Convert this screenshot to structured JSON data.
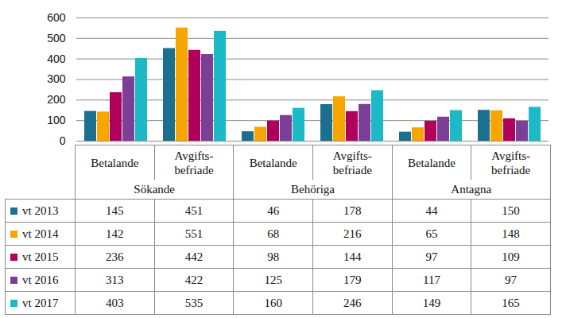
{
  "chart_data": {
    "type": "bar",
    "categories": [
      "Betalande",
      "Avgifts-befriade",
      "Betalande",
      "Avgifts-befriade",
      "Betalande",
      "Avgifts-befriade"
    ],
    "category_groups": [
      "Sökande",
      "Sökande",
      "Behöriga",
      "Behöriga",
      "Antagna",
      "Antagna"
    ],
    "series": [
      {
        "name": "vt 2013",
        "color": "#1b6f8f",
        "values": [
          145,
          451,
          46,
          178,
          44,
          150
        ]
      },
      {
        "name": "vt 2014",
        "color": "#f7a600",
        "values": [
          142,
          551,
          68,
          216,
          65,
          148
        ]
      },
      {
        "name": "vt 2015",
        "color": "#b0005b",
        "values": [
          236,
          442,
          98,
          144,
          97,
          109
        ]
      },
      {
        "name": "vt 2016",
        "color": "#7b3f98",
        "values": [
          313,
          422,
          125,
          179,
          117,
          97
        ]
      },
      {
        "name": "vt 2017",
        "color": "#1cb9c6",
        "values": [
          403,
          535,
          160,
          246,
          149,
          165
        ]
      }
    ],
    "ylim": [
      0,
      600
    ],
    "yticks": [
      0,
      100,
      200,
      300,
      400,
      500,
      600
    ],
    "grid": true
  }
}
